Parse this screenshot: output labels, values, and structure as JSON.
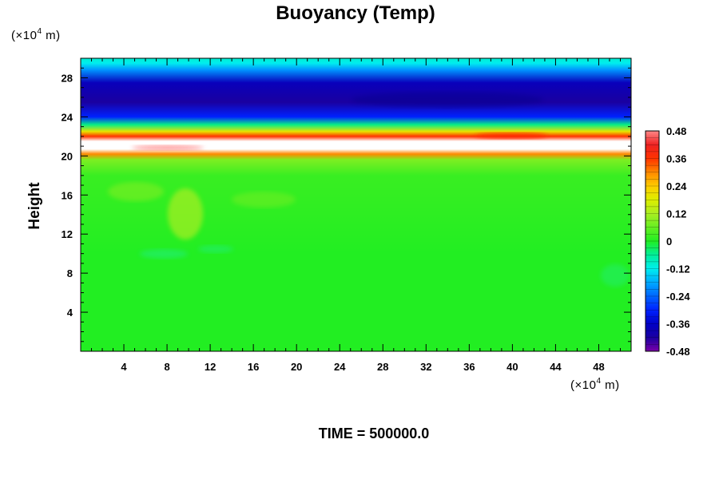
{
  "chart_data": {
    "type": "heatmap",
    "title": "Buoyancy (Temp)",
    "ylabel": "Height",
    "x_unit_prefix": "(×10",
    "x_unit_exp": "4",
    "x_unit_suffix": " m)",
    "y_unit_prefix": "(×10",
    "y_unit_exp": "4",
    "y_unit_suffix": " m)",
    "xlim": [
      0,
      51
    ],
    "ylim": [
      0,
      30
    ],
    "x_ticks": [
      "4",
      "8",
      "12",
      "16",
      "20",
      "24",
      "28",
      "32",
      "36",
      "40",
      "44",
      "48"
    ],
    "x_tick_values": [
      4,
      8,
      12,
      16,
      20,
      24,
      28,
      32,
      36,
      40,
      44,
      48
    ],
    "y_ticks": [
      "4",
      "8",
      "12",
      "16",
      "20",
      "24",
      "28"
    ],
    "y_tick_values": [
      4,
      8,
      12,
      16,
      20,
      24,
      28
    ],
    "colorbar": {
      "min": -0.48,
      "max": 0.48,
      "labels": [
        "0.48",
        "0.36",
        "0.24",
        "0.12",
        "0",
        "-0.12",
        "-0.24",
        "-0.36",
        "-0.48"
      ],
      "label_values": [
        0.48,
        0.36,
        0.24,
        0.12,
        0,
        -0.12,
        -0.24,
        -0.36,
        -0.48
      ]
    },
    "vertical_profile": [
      {
        "height": 0,
        "value": 0.0
      },
      {
        "height": 10,
        "value": 0.0
      },
      {
        "height": 18,
        "value": 0.02
      },
      {
        "height": 19.6,
        "value": 0.08
      },
      {
        "height": 20.2,
        "value": 0.3
      },
      {
        "height": 20.7,
        "value": 0.48
      },
      {
        "height": 21.5,
        "value": 0.48
      },
      {
        "height": 22.0,
        "value": 0.36
      },
      {
        "height": 22.5,
        "value": 0.2
      },
      {
        "height": 23.2,
        "value": -0.05
      },
      {
        "height": 24.0,
        "value": -0.3
      },
      {
        "height": 25.5,
        "value": -0.42
      },
      {
        "height": 27.5,
        "value": -0.38
      },
      {
        "height": 28.8,
        "value": -0.2
      },
      {
        "height": 29.5,
        "value": -0.12
      },
      {
        "height": 30,
        "value": -0.1
      }
    ]
  },
  "time_label": "TIME = 500000.0"
}
